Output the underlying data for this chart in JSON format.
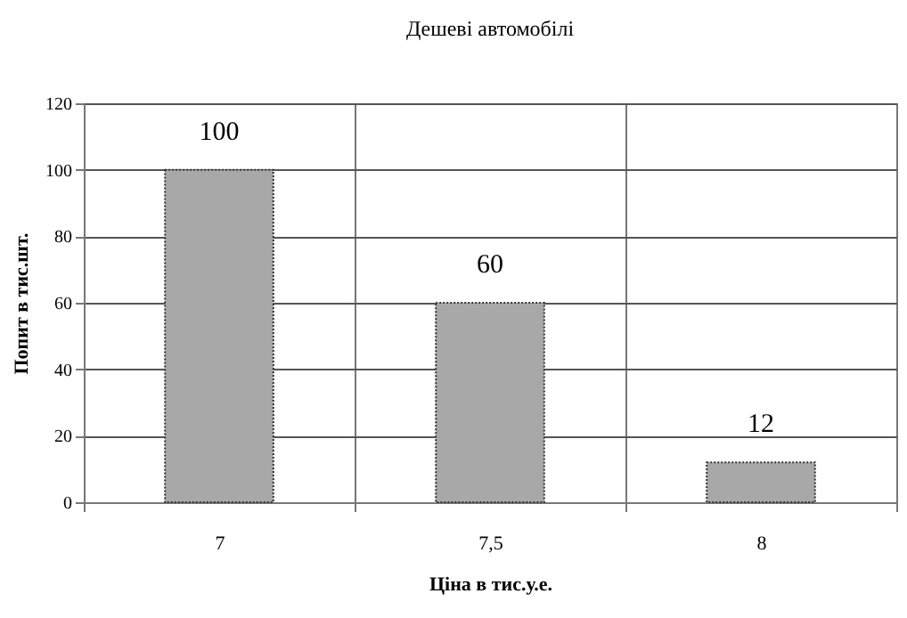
{
  "chart_data": {
    "type": "bar",
    "title": "Дешеві автомобілі",
    "xlabel": "Ціна в тис.у.е.",
    "ylabel": "Попит в тис.шт.",
    "categories": [
      "7",
      "7,5",
      "8"
    ],
    "values": [
      100,
      60,
      12
    ],
    "color": "#a8a8a8",
    "ylim": [
      0,
      120
    ],
    "yticks": [
      0,
      20,
      40,
      60,
      80,
      100,
      120
    ],
    "grid": true,
    "data_labels": true
  }
}
